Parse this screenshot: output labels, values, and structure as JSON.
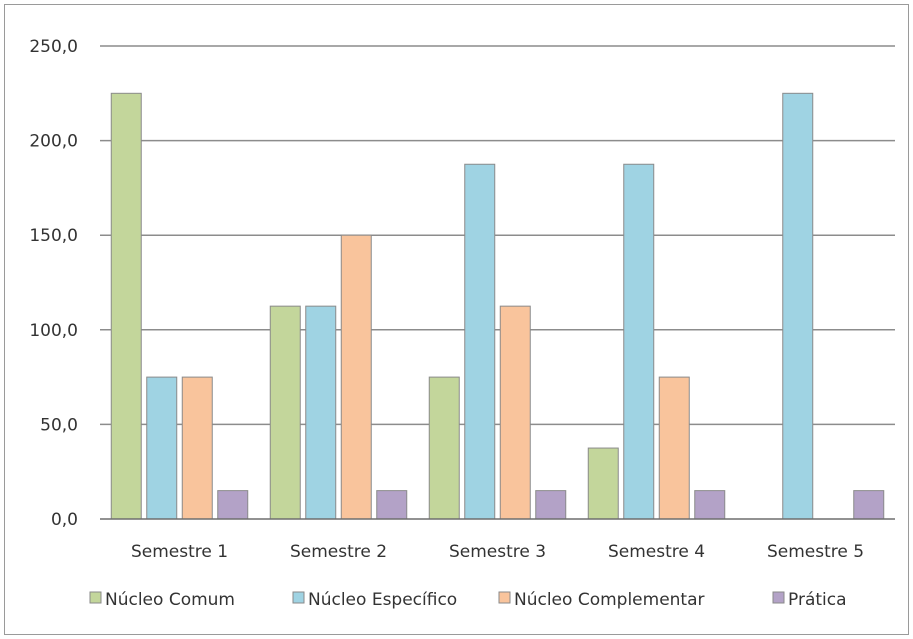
{
  "chart_data": {
    "type": "bar",
    "title": "",
    "xlabel": "",
    "ylabel": "",
    "categories": [
      "Semestre 1",
      "Semestre 2",
      "Semestre 3",
      "Semestre 4",
      "Semestre 5"
    ],
    "ylim": [
      0,
      250
    ],
    "yticks": [
      0,
      50,
      100,
      150,
      200,
      250
    ],
    "ytick_labels": [
      "0,0",
      "50,0",
      "100,0",
      "150,0",
      "200,0",
      "250,0"
    ],
    "grid": true,
    "legend_position": "bottom",
    "series": [
      {
        "name": "Núcleo Comum",
        "color": "#c3d69b",
        "values": [
          225,
          112.5,
          75,
          37.5,
          0
        ]
      },
      {
        "name": "Núcleo Específico",
        "color": "#9fd3e3",
        "values": [
          75,
          112.5,
          187.5,
          187.5,
          225
        ]
      },
      {
        "name": "Núcleo Complementar",
        "color": "#f9c49c",
        "values": [
          75,
          150,
          112.5,
          75,
          0
        ]
      },
      {
        "name": "Prática",
        "color": "#b3a2c7",
        "values": [
          15,
          15,
          15,
          15,
          15
        ]
      }
    ]
  }
}
